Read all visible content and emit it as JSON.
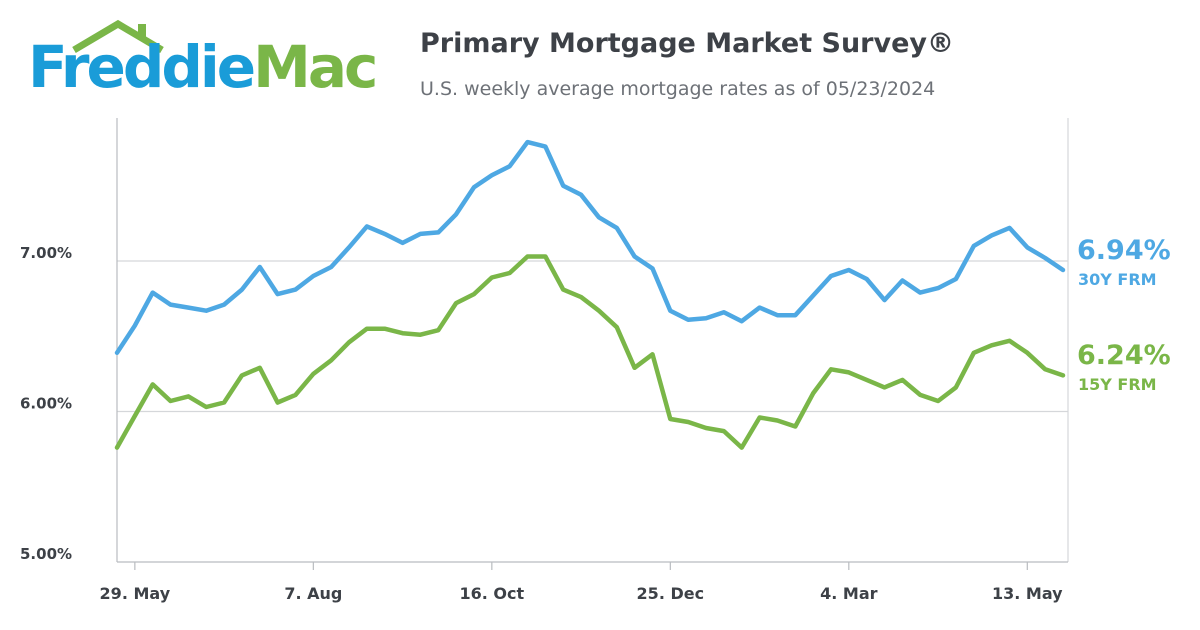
{
  "logo": {
    "part1": "Freddie",
    "part2": "Mac"
  },
  "header": {
    "title": "Primary Mortgage Market Survey®",
    "subtitle": "U.S. weekly average mortgage rates as of 05/23/2024"
  },
  "colors": {
    "frm30": "#4ea8e3",
    "frm15": "#7ab648",
    "text": "#3d4147",
    "grid": "#d5d7da",
    "axis": "#b9bcc0"
  },
  "chart_data": {
    "type": "line",
    "ylim": [
      5.0,
      7.95
    ],
    "yticks": [
      {
        "value": 5.0,
        "label": "5.00%"
      },
      {
        "value": 6.0,
        "label": "6.00%"
      },
      {
        "value": 7.0,
        "label": "7.00%"
      }
    ],
    "gridlines": [
      6.0,
      7.0
    ],
    "xticks": [
      {
        "index": 1,
        "label": "29. May"
      },
      {
        "index": 11,
        "label": "7. Aug"
      },
      {
        "index": 21,
        "label": "16. Oct"
      },
      {
        "index": 31,
        "label": "25. Dec"
      },
      {
        "index": 41,
        "label": "4. Mar"
      },
      {
        "index": 51,
        "label": "13. May"
      }
    ],
    "series": [
      {
        "name": "30Y FRM",
        "end_value": "6.94%",
        "color": "#4ea8e3",
        "values": [
          6.39,
          6.57,
          6.79,
          6.71,
          6.69,
          6.67,
          6.71,
          6.81,
          6.96,
          6.78,
          6.81,
          6.9,
          6.96,
          7.09,
          7.23,
          7.18,
          7.12,
          7.18,
          7.19,
          7.31,
          7.49,
          7.57,
          7.63,
          7.79,
          7.76,
          7.5,
          7.44,
          7.29,
          7.22,
          7.03,
          6.95,
          6.67,
          6.61,
          6.62,
          6.66,
          6.6,
          6.69,
          6.64,
          6.64,
          6.77,
          6.9,
          6.94,
          6.88,
          6.74,
          6.87,
          6.79,
          6.82,
          6.88,
          7.1,
          7.17,
          7.22,
          7.09,
          7.02,
          6.94
        ]
      },
      {
        "name": "15Y FRM",
        "end_value": "6.24%",
        "color": "#7ab648",
        "values": [
          5.76,
          5.97,
          6.18,
          6.07,
          6.1,
          6.03,
          6.06,
          6.24,
          6.29,
          6.06,
          6.11,
          6.25,
          6.34,
          6.46,
          6.55,
          6.55,
          6.52,
          6.51,
          6.54,
          6.72,
          6.78,
          6.89,
          6.92,
          7.03,
          7.03,
          6.81,
          6.76,
          6.67,
          6.56,
          6.29,
          6.38,
          5.95,
          5.93,
          5.89,
          5.87,
          5.76,
          5.96,
          5.94,
          5.9,
          6.12,
          6.28,
          6.26,
          6.21,
          6.16,
          6.21,
          6.11,
          6.07,
          6.16,
          6.39,
          6.44,
          6.47,
          6.39,
          6.28,
          6.24
        ]
      }
    ]
  }
}
